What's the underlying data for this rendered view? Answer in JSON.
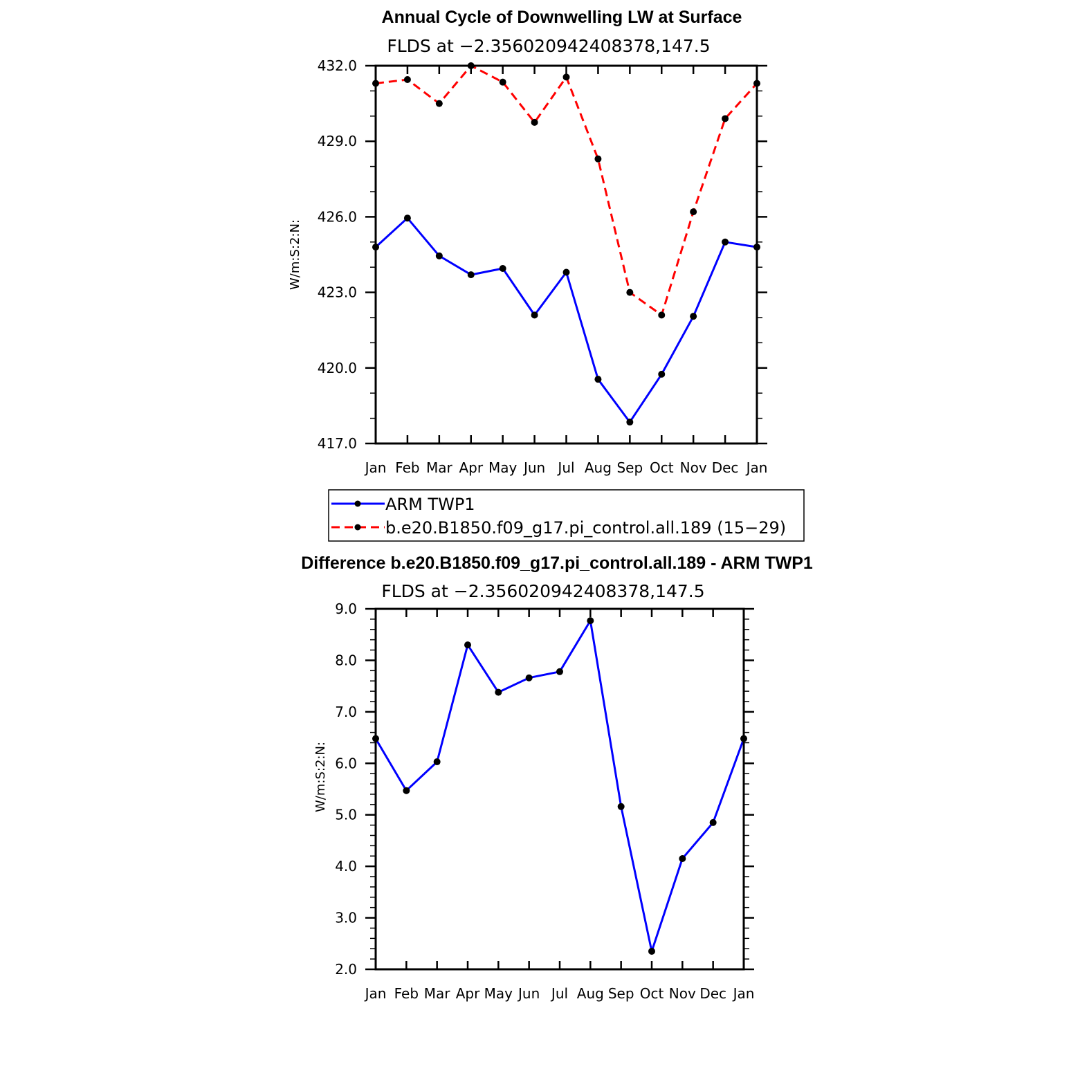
{
  "chart_data": [
    {
      "type": "line",
      "title": "Annual Cycle of Downwelling LW at Surface",
      "subtitle": "FLDS at −2.356020942408378,147.5",
      "ylabel": "W/m:S:2:N:",
      "xlabel": "",
      "categories": [
        "Jan",
        "Feb",
        "Mar",
        "Apr",
        "May",
        "Jun",
        "Jul",
        "Aug",
        "Sep",
        "Oct",
        "Nov",
        "Dec",
        "Jan"
      ],
      "ylim": [
        417.0,
        432.0
      ],
      "yticks": [
        417.0,
        420.0,
        423.0,
        426.0,
        429.0,
        432.0
      ],
      "ytick_labels": [
        "417.0",
        "420.0",
        "423.0",
        "426.0",
        "429.0",
        "432.0"
      ],
      "series": [
        {
          "name": "ARM  TWP1",
          "color": "#0000ff",
          "dash": "solid",
          "values": [
            424.8,
            425.95,
            424.45,
            423.7,
            423.95,
            422.1,
            423.8,
            419.55,
            417.85,
            419.75,
            422.05,
            425.0,
            424.8
          ]
        },
        {
          "name": "b.e20.B1850.f09_g17.pi_control.all.189 (15−29)",
          "color": "#ff0000",
          "dash": "dashed",
          "values": [
            431.3,
            431.45,
            430.5,
            432.0,
            431.35,
            429.75,
            431.55,
            428.3,
            423.0,
            422.1,
            426.2,
            429.9,
            431.3
          ]
        }
      ],
      "legend": "below"
    },
    {
      "type": "line",
      "title": "Difference b.e20.B1850.f09_g17.pi_control.all.189 - ARM TWP1",
      "subtitle": "FLDS at −2.356020942408378,147.5",
      "ylabel": "W/m:S:2:N:",
      "xlabel": "",
      "categories": [
        "Jan",
        "Feb",
        "Mar",
        "Apr",
        "May",
        "Jun",
        "Jul",
        "Aug",
        "Sep",
        "Oct",
        "Nov",
        "Dec",
        "Jan"
      ],
      "ylim": [
        2.0,
        9.0
      ],
      "yticks": [
        2.0,
        3.0,
        4.0,
        5.0,
        6.0,
        7.0,
        8.0,
        9.0
      ],
      "ytick_labels": [
        "2.0",
        "3.0",
        "4.0",
        "5.0",
        "6.0",
        "7.0",
        "8.0",
        "9.0"
      ],
      "series": [
        {
          "color": "#0000ff",
          "dash": "solid",
          "values": [
            6.48,
            5.47,
            6.03,
            8.3,
            7.38,
            7.66,
            7.78,
            8.77,
            5.16,
            2.35,
            4.15,
            4.85,
            6.48
          ]
        }
      ]
    }
  ]
}
